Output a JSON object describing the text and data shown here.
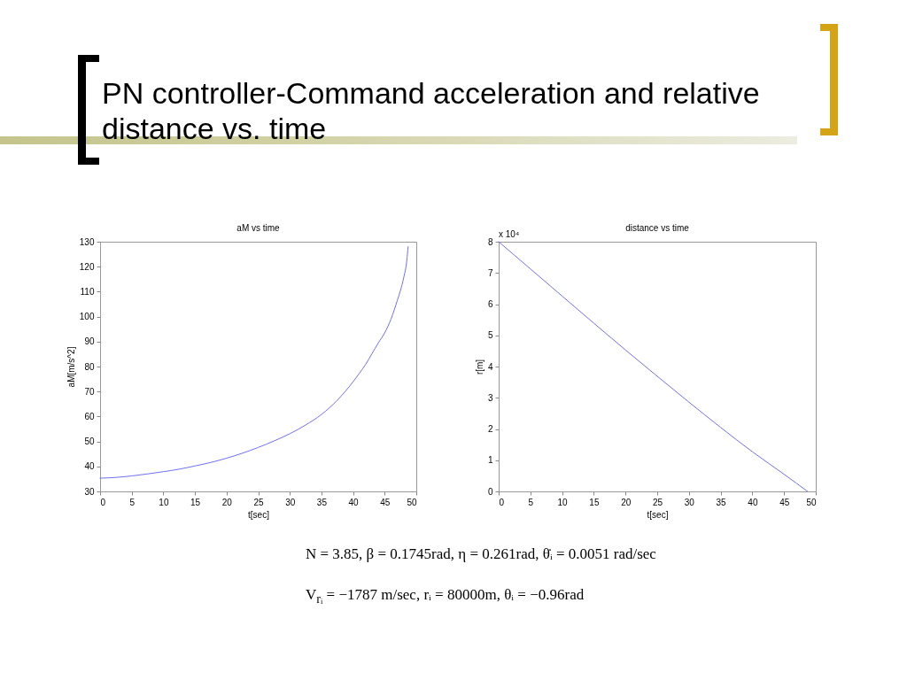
{
  "chart_data": [
    {
      "type": "other",
      "title": "PN controller-Command acceleration and relative distance vs. time"
    },
    {
      "type": "line",
      "title": "aM vs time",
      "xlabel": "t[sec]",
      "ylabel": "aM[m/s^2]",
      "x": [
        0,
        2.5,
        5,
        7.5,
        10,
        12.5,
        15,
        17.5,
        20,
        22.5,
        25,
        27.5,
        30,
        32.5,
        35,
        37.5,
        40,
        41,
        42,
        43,
        44,
        45,
        46,
        47,
        47.5,
        48,
        48.5,
        48.7
      ],
      "series": [
        {
          "color": "#7070f0",
          "values": [
            35.3,
            35.6,
            36.2,
            37.0,
            37.9,
            38.9,
            40.2,
            41.6,
            43.3,
            45.3,
            47.6,
            50.2,
            53.1,
            56.6,
            60.8,
            66.5,
            73.9,
            77.3,
            80.9,
            85.2,
            89.5,
            93.5,
            99.0,
            106.5,
            110.5,
            115.5,
            122.5,
            128.0
          ]
        }
      ],
      "xlim": [
        0,
        50
      ],
      "ylim": [
        30,
        130
      ],
      "xticks": [
        0,
        5,
        10,
        15,
        20,
        25,
        30,
        35,
        40,
        45,
        50
      ],
      "yticks": [
        30,
        40,
        50,
        60,
        70,
        80,
        90,
        100,
        110,
        120,
        130
      ]
    },
    {
      "type": "line",
      "title": "distance vs time",
      "xlabel": "t[sec]",
      "ylabel": "r[m]",
      "annotations": [
        "x 10⁴"
      ],
      "x": [
        0,
        5,
        10,
        15,
        20,
        25,
        30,
        35,
        40,
        45,
        48.7
      ],
      "series": [
        {
          "color": "#7070f0",
          "values": [
            8.0,
            7.13,
            6.26,
            5.39,
            4.53,
            3.69,
            2.86,
            2.05,
            1.27,
            0.55,
            0
          ]
        }
      ],
      "xlim": [
        0,
        50
      ],
      "ylim": [
        0,
        8
      ],
      "xticks": [
        0,
        5,
        10,
        15,
        20,
        25,
        30,
        35,
        40,
        45,
        50
      ],
      "yticks": [
        0,
        1,
        2,
        3,
        4,
        5,
        6,
        7,
        8
      ]
    },
    {
      "type": "other",
      "annotations": [
        "N = 3.85, β = 0.1745rad, η = 0.261rad, θ̇ᵢ = 0.0051 rad/sec",
        "V$_{rᵢ}$ = −1787 m/sec, rᵢ = 80000m, θᵢ = −0.96rad"
      ]
    }
  ]
}
